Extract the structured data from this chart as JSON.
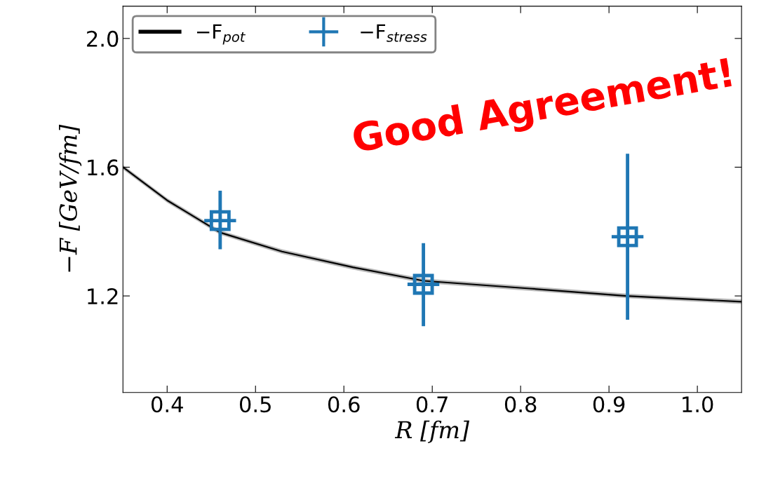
{
  "chart_data": {
    "type": "line",
    "xlabel": "R [fm]",
    "ylabel": "−F [GeV/fm]",
    "xlim": [
      0.35,
      1.05
    ],
    "xticks": [
      {
        "value": 0.4,
        "label": "0.4"
      },
      {
        "value": 0.5,
        "label": "0.5"
      },
      {
        "value": 0.6,
        "label": "0.6"
      },
      {
        "value": 0.7,
        "label": "0.7"
      },
      {
        "value": 0.8,
        "label": "0.8"
      },
      {
        "value": 0.9,
        "label": "0.9"
      },
      {
        "value": 1.0,
        "label": "1.0"
      }
    ],
    "ylim": [
      0.9,
      2.1
    ],
    "yticks": [
      {
        "value": 1.2,
        "label": "1.2"
      },
      {
        "value": 1.6,
        "label": "1.6"
      },
      {
        "value": 2.0,
        "label": "2.0"
      }
    ],
    "grid": false,
    "legend": "top left",
    "series": [
      {
        "name": "−F$_{pot}$",
        "color": "#000000",
        "x": [
          0.35,
          0.4,
          0.46,
          0.53,
          0.61,
          0.69,
          0.81,
          0.92,
          1.05
        ],
        "values": [
          1.6,
          1.497,
          1.397,
          1.338,
          1.289,
          1.247,
          1.223,
          1.2,
          1.182
        ],
        "lower": [
          1.593,
          1.49,
          1.39,
          1.331,
          1.282,
          1.24,
          1.216,
          1.193,
          1.175
        ],
        "upper": [
          1.607,
          1.504,
          1.404,
          1.345,
          1.296,
          1.254,
          1.23,
          1.207,
          1.189
        ]
      },
      {
        "name": "−F$_{stress}$",
        "type": "scatter",
        "color": "#1f77b4",
        "marker": "square",
        "x": [
          0.46,
          0.69,
          0.921
        ],
        "values": [
          1.434,
          1.236,
          1.384
        ],
        "errors": [
          [
            1.345,
            1.527
          ],
          [
            1.106,
            1.364
          ],
          [
            1.126,
            1.642
          ]
        ],
        "xerrors": [
          0.018,
          0.018,
          0.018
        ]
      }
    ],
    "annotations": [
      "Good Agreement!"
    ]
  }
}
